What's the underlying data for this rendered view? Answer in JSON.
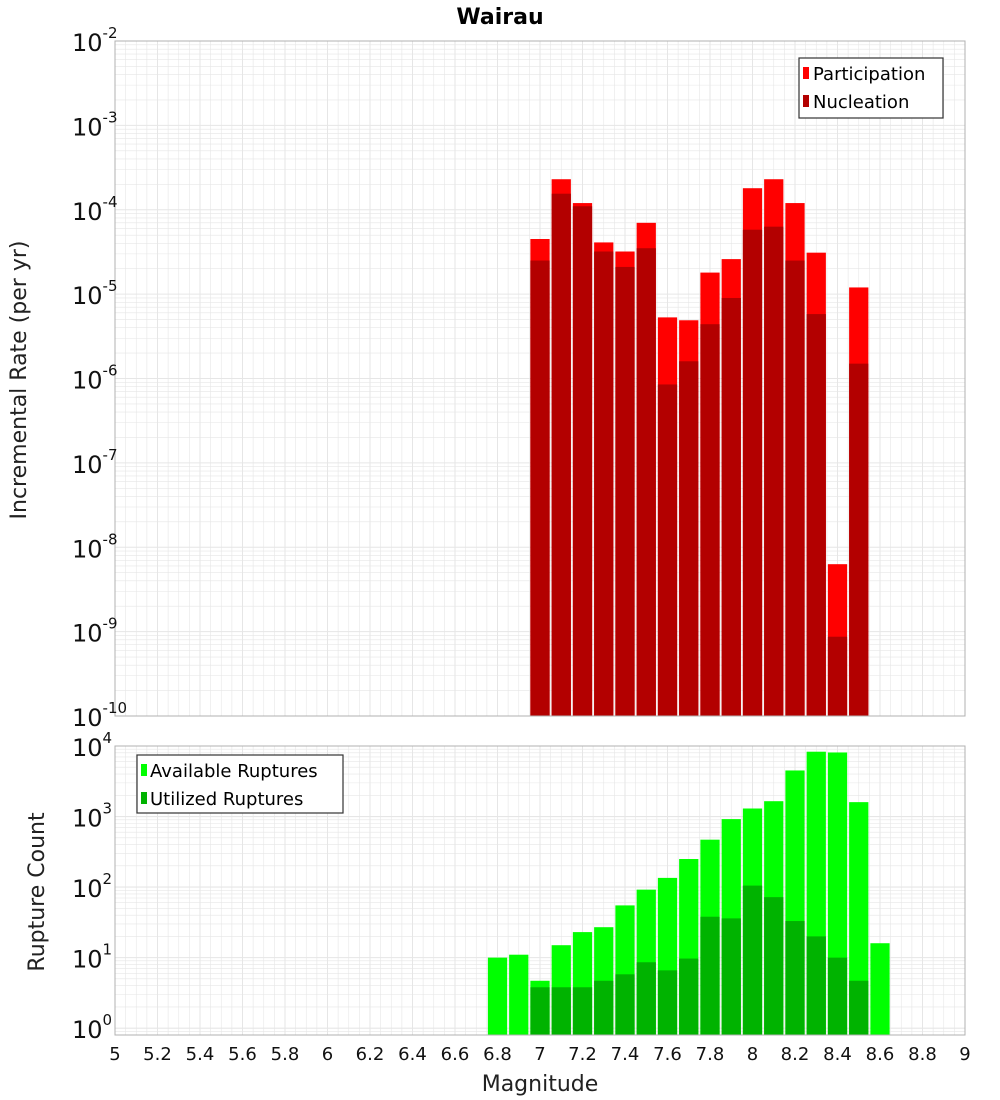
{
  "title": "Wairau",
  "colors": {
    "participation": "#ff0000",
    "nucleation": "#b30000",
    "available": "#00ff00",
    "utilized": "#00b300",
    "grid": "#e6e6e6",
    "frame": "#b0b0b0"
  },
  "chart_data": [
    {
      "type": "bar",
      "title": "Wairau",
      "xlabel": "",
      "ylabel": "Incremental Rate (per yr)",
      "y_scale": "log",
      "ylim": [
        1e-10,
        0.01
      ],
      "xlim": [
        5,
        9
      ],
      "legend": {
        "position": "top-right",
        "entries": [
          "Participation",
          "Nucleation"
        ]
      },
      "bin_width": 0.1,
      "x": [
        7.0,
        7.1,
        7.2,
        7.3,
        7.4,
        7.5,
        7.6,
        7.7,
        7.8,
        7.9,
        8.0,
        8.1,
        8.2,
        8.3,
        8.4,
        8.5
      ],
      "series": [
        {
          "name": "Participation",
          "color": "#ff0000",
          "values": [
            4.5e-05,
            0.00023,
            0.00012,
            4.1e-05,
            3.2e-05,
            7e-05,
            5.3e-06,
            4.9e-06,
            1.8e-05,
            2.6e-05,
            0.00018,
            0.00023,
            0.00012,
            3.1e-05,
            6.3e-09,
            1.2e-05
          ]
        },
        {
          "name": "Nucleation",
          "color": "#b30000",
          "values": [
            2.5e-05,
            0.000155,
            0.00011,
            3.2e-05,
            2.1e-05,
            3.5e-05,
            8.5e-07,
            1.6e-06,
            4.4e-06,
            9e-06,
            5.8e-05,
            6.3e-05,
            2.5e-05,
            5.8e-06,
            8.7e-10,
            1.5e-06
          ]
        }
      ]
    },
    {
      "type": "bar",
      "xlabel": "Magnitude",
      "ylabel": "Rupture Count",
      "y_scale": "log",
      "ylim": [
        0.8,
        10000
      ],
      "xlim": [
        5,
        9
      ],
      "legend": {
        "position": "top-left",
        "entries": [
          "Available Ruptures",
          "Utilized Ruptures"
        ]
      },
      "bin_width": 0.1,
      "x": [
        6.8,
        6.9,
        7.0,
        7.1,
        7.2,
        7.3,
        7.4,
        7.5,
        7.6,
        7.7,
        7.8,
        7.9,
        8.0,
        8.1,
        8.2,
        8.3,
        8.4,
        8.5,
        8.6
      ],
      "series": [
        {
          "name": "Available Ruptures",
          "color": "#00ff00",
          "values": [
            10,
            11,
            4.7,
            15,
            23,
            27,
            55,
            92,
            135,
            250,
            470,
            920,
            1300,
            1650,
            4500,
            8300,
            8100,
            1600,
            16
          ]
        },
        {
          "name": "Utilized Ruptures",
          "color": "#00b300",
          "values": [
            null,
            null,
            3.8,
            3.8,
            3.8,
            4.7,
            5.8,
            8.6,
            6.6,
            9.7,
            38,
            36,
            105,
            72,
            33,
            20,
            10,
            4.7,
            null
          ]
        }
      ]
    }
  ],
  "x_ticks": [
    "5",
    "5.2",
    "5.4",
    "5.6",
    "5.8",
    "6",
    "6.2",
    "6.4",
    "6.6",
    "6.8",
    "7",
    "7.2",
    "7.4",
    "7.6",
    "7.8",
    "8",
    "8.2",
    "8.4",
    "8.6",
    "8.8",
    "9"
  ],
  "top_y_ticks": [
    {
      "base": "10",
      "exp": "-2"
    },
    {
      "base": "10",
      "exp": "-3"
    },
    {
      "base": "10",
      "exp": "-4"
    },
    {
      "base": "10",
      "exp": "-5"
    },
    {
      "base": "10",
      "exp": "-6"
    },
    {
      "base": "10",
      "exp": "-7"
    },
    {
      "base": "10",
      "exp": "-8"
    },
    {
      "base": "10",
      "exp": "-9"
    },
    {
      "base": "10",
      "exp": "-10"
    }
  ],
  "bottom_y_ticks": [
    {
      "base": "10",
      "exp": "4"
    },
    {
      "base": "10",
      "exp": "3"
    },
    {
      "base": "10",
      "exp": "2"
    },
    {
      "base": "10",
      "exp": "1"
    },
    {
      "base": "10",
      "exp": "0"
    }
  ]
}
